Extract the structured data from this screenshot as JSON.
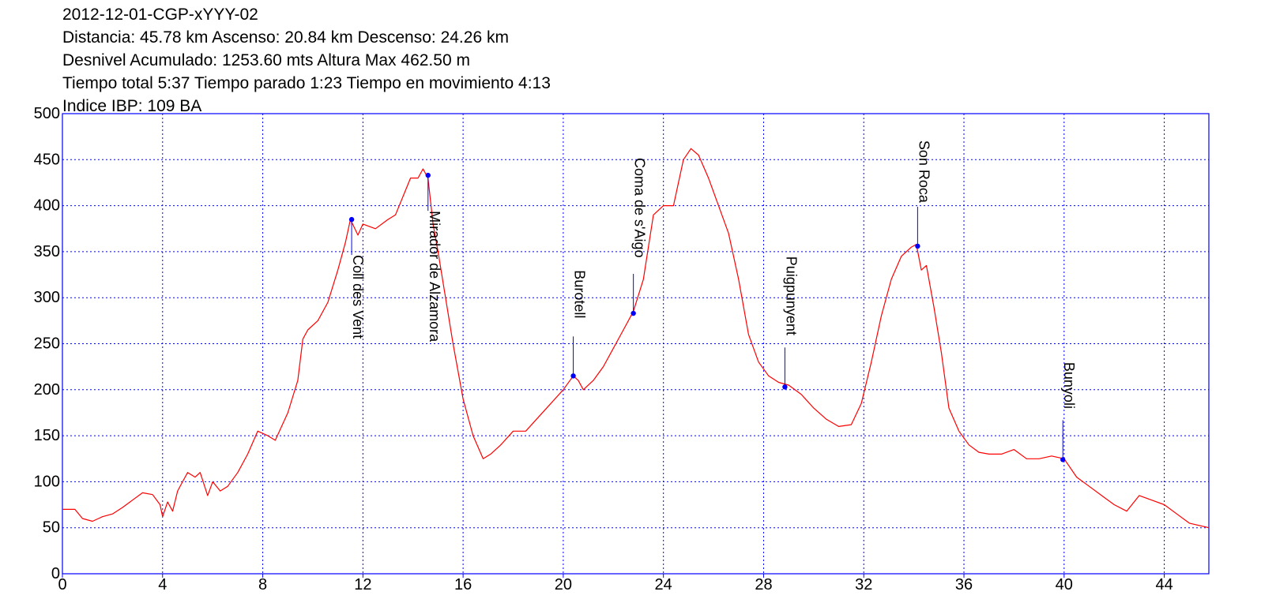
{
  "header": {
    "line1": "2012-12-01-CGP-xYYY-02",
    "line2": "Distancia: 45.78 km Ascenso: 20.84 km Descenso: 24.26 km",
    "line3": "Desnivel Acumulado: 1253.60 mts  Altura Max 462.50 m",
    "line4": "Tiempo total 5:37 Tiempo parado 1:23 Tiempo en movimiento 4:13",
    "line5": "Indice IBP: 109 BA"
  },
  "colors": {
    "frame": "#0000ff",
    "grid": "#0000ff",
    "profile": "#ff0000",
    "markers": "#0000ff",
    "text": "#000000"
  },
  "chart_data": {
    "type": "line",
    "title": "",
    "xlabel": "",
    "ylabel": "",
    "xlim": [
      0,
      45.78
    ],
    "ylim": [
      0,
      500
    ],
    "grid": true,
    "grid_style": "dotted",
    "x_ticks": [
      "0",
      "4",
      "8",
      "12",
      "16",
      "20",
      "24",
      "28",
      "32",
      "36",
      "40",
      "44"
    ],
    "y_ticks": [
      "0",
      "50",
      "100",
      "150",
      "200",
      "250",
      "300",
      "350",
      "400",
      "450",
      "500"
    ],
    "series": [
      {
        "x": [
          0,
          0.5,
          0.8,
          1.2,
          1.6,
          2.0,
          2.4,
          2.8,
          3.2,
          3.6,
          3.9,
          4.0,
          4.2,
          4.4,
          4.6,
          4.8,
          5.0,
          5.3,
          5.5,
          5.8,
          6.0,
          6.3,
          6.6,
          7.0,
          7.4,
          7.8,
          8.2,
          8.5,
          9.0,
          9.4,
          9.6,
          9.8,
          10.2,
          10.6,
          11.0,
          11.3,
          11.5,
          11.8,
          12.0,
          12.5,
          13.0,
          13.3,
          13.6,
          13.9,
          14.2,
          14.4,
          14.6,
          14.8,
          15.0,
          15.3,
          15.6,
          16.0,
          16.4,
          16.8,
          17.1,
          17.5,
          18.0,
          18.5,
          19.0,
          19.5,
          20.0,
          20.4,
          20.6,
          20.8,
          21.2,
          21.6,
          22.0,
          22.4,
          22.8,
          23.2,
          23.6,
          24.0,
          24.4,
          24.8,
          25.1,
          25.4,
          25.8,
          26.2,
          26.6,
          27.0,
          27.4,
          27.8,
          28.2,
          28.6,
          29.0,
          29.5,
          30.0,
          30.5,
          31.0,
          31.5,
          31.9,
          32.3,
          32.7,
          33.1,
          33.5,
          33.9,
          34.1,
          34.3,
          34.5,
          34.8,
          35.1,
          35.4,
          35.8,
          36.2,
          36.6,
          37.0,
          37.5,
          38.0,
          38.5,
          39.0,
          39.5,
          40.0,
          40.5,
          41.0,
          41.5,
          42.0,
          42.5,
          43.0,
          43.5,
          44.0,
          44.5,
          45.0,
          45.78
        ],
        "y": [
          70,
          70,
          60,
          57,
          62,
          65,
          72,
          80,
          88,
          86,
          75,
          62,
          78,
          68,
          90,
          100,
          110,
          105,
          110,
          85,
          100,
          90,
          95,
          110,
          130,
          155,
          150,
          145,
          175,
          210,
          255,
          265,
          275,
          295,
          330,
          360,
          385,
          368,
          380,
          375,
          385,
          390,
          410,
          430,
          430,
          440,
          430,
          380,
          350,
          300,
          250,
          190,
          150,
          125,
          130,
          140,
          155,
          155,
          170,
          185,
          200,
          215,
          210,
          200,
          210,
          225,
          245,
          265,
          285,
          320,
          390,
          400,
          400,
          450,
          462,
          455,
          430,
          400,
          370,
          320,
          260,
          230,
          215,
          208,
          205,
          195,
          180,
          168,
          160,
          162,
          185,
          230,
          280,
          320,
          345,
          355,
          358,
          330,
          335,
          290,
          240,
          180,
          155,
          140,
          132,
          130,
          130,
          135,
          125,
          125,
          128,
          125,
          105,
          95,
          85,
          75,
          68,
          85,
          80,
          75,
          65,
          55,
          50
        ]
      }
    ],
    "annotations": [
      {
        "label": "Coll des Vent",
        "x": 11.55,
        "y": 385
      },
      {
        "label": "Mirador de Alzamora",
        "x": 14.6,
        "y": 433
      },
      {
        "label": "Burotell",
        "x": 20.4,
        "y": 215
      },
      {
        "label": "Coma de s'Aigo",
        "x": 22.8,
        "y": 283
      },
      {
        "label": "Puigpunyent",
        "x": 28.85,
        "y": 203
      },
      {
        "label": "Son Roca",
        "x": 34.15,
        "y": 356
      },
      {
        "label": "Bunyoli",
        "x": 39.95,
        "y": 124
      }
    ]
  }
}
